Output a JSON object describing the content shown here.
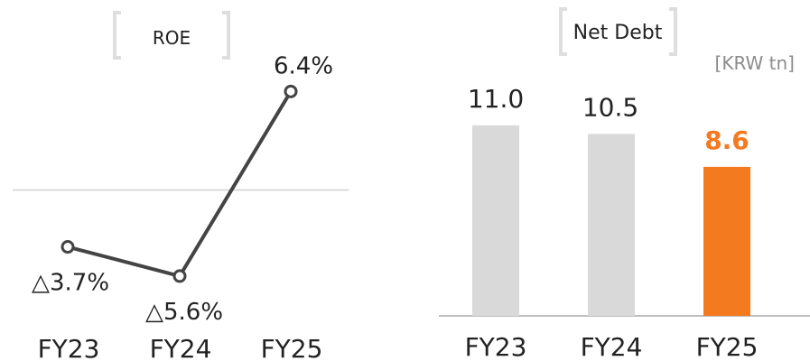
{
  "colors": {
    "line": "#444444",
    "marker_fill": "#ffffff",
    "zero_line": "#d0d0d0",
    "bar_default": "#d9d9d9",
    "bar_highlight": "#f47a20",
    "label_default": "#222222",
    "label_highlight": "#f47a20",
    "unit_text": "#8c8c8c",
    "bracket": "#dedede",
    "axis": "#bfbfbf"
  },
  "chart_data": [
    {
      "type": "line",
      "title": "ROE",
      "categories": [
        "FY23",
        "FY24",
        "FY25"
      ],
      "values": [
        -3.7,
        -5.6,
        6.4
      ],
      "value_labels": [
        "△3.7%",
        "△5.6%",
        "6.4%"
      ],
      "unit": "%",
      "ylim": [
        -12,
        10
      ],
      "zero_line": true,
      "grid": false
    },
    {
      "type": "bar",
      "title": "Net Debt",
      "unit_label": "[KRW tn]",
      "categories": [
        "FY23",
        "FY24",
        "FY25"
      ],
      "values": [
        11.0,
        10.5,
        8.6
      ],
      "value_labels": [
        "11.0",
        "10.5",
        "8.6"
      ],
      "highlight_index": 2,
      "ylim": [
        0,
        16
      ],
      "grid": false
    }
  ]
}
